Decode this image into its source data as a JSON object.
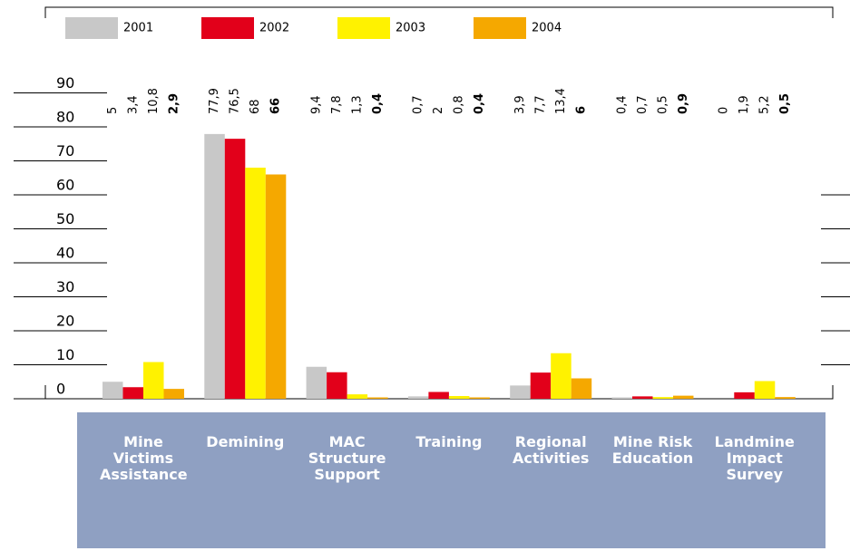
{
  "chart_data": {
    "type": "bar",
    "categories": [
      "Mine Victims Assistance",
      "Demining",
      "MAC Structure Support",
      "Training",
      "Regional Activities",
      "Mine Risk Education",
      "Landmine Impact Survey"
    ],
    "series": [
      {
        "name": "2001",
        "color": "#c8c8c8",
        "values": [
          5,
          77.9,
          9.4,
          0.7,
          3.9,
          0.4,
          0
        ],
        "value_labels": [
          "5",
          "77,9",
          "9,4",
          "0,7",
          "3,9",
          "0,4",
          "0"
        ]
      },
      {
        "name": "2002",
        "color": "#e2001a",
        "values": [
          3.4,
          76.5,
          7.8,
          2,
          7.7,
          0.7,
          1.9
        ],
        "value_labels": [
          "3,4",
          "76,5",
          "7,8",
          "2",
          "7,7",
          "0,7",
          "1,9"
        ]
      },
      {
        "name": "2003",
        "color": "#fff200",
        "values": [
          10.8,
          68,
          1.3,
          0.8,
          13.4,
          0.5,
          5.2
        ],
        "value_labels": [
          "10,8",
          "68",
          "1,3",
          "0,8",
          "13,4",
          "0,5",
          "5,2"
        ]
      },
      {
        "name": "2004",
        "color": "#f5a800",
        "values": [
          2.9,
          66,
          0.4,
          0.4,
          6,
          0.9,
          0.5
        ],
        "value_labels": [
          "2,9",
          "66",
          "0,4",
          "0,4",
          "6",
          "0,9",
          "0,5"
        ],
        "label_weight": "bold"
      }
    ],
    "ylim": [
      0,
      90
    ],
    "yticks": [
      0,
      10,
      20,
      30,
      40,
      50,
      60,
      70,
      80,
      90
    ],
    "grid": true,
    "legend": "top"
  }
}
